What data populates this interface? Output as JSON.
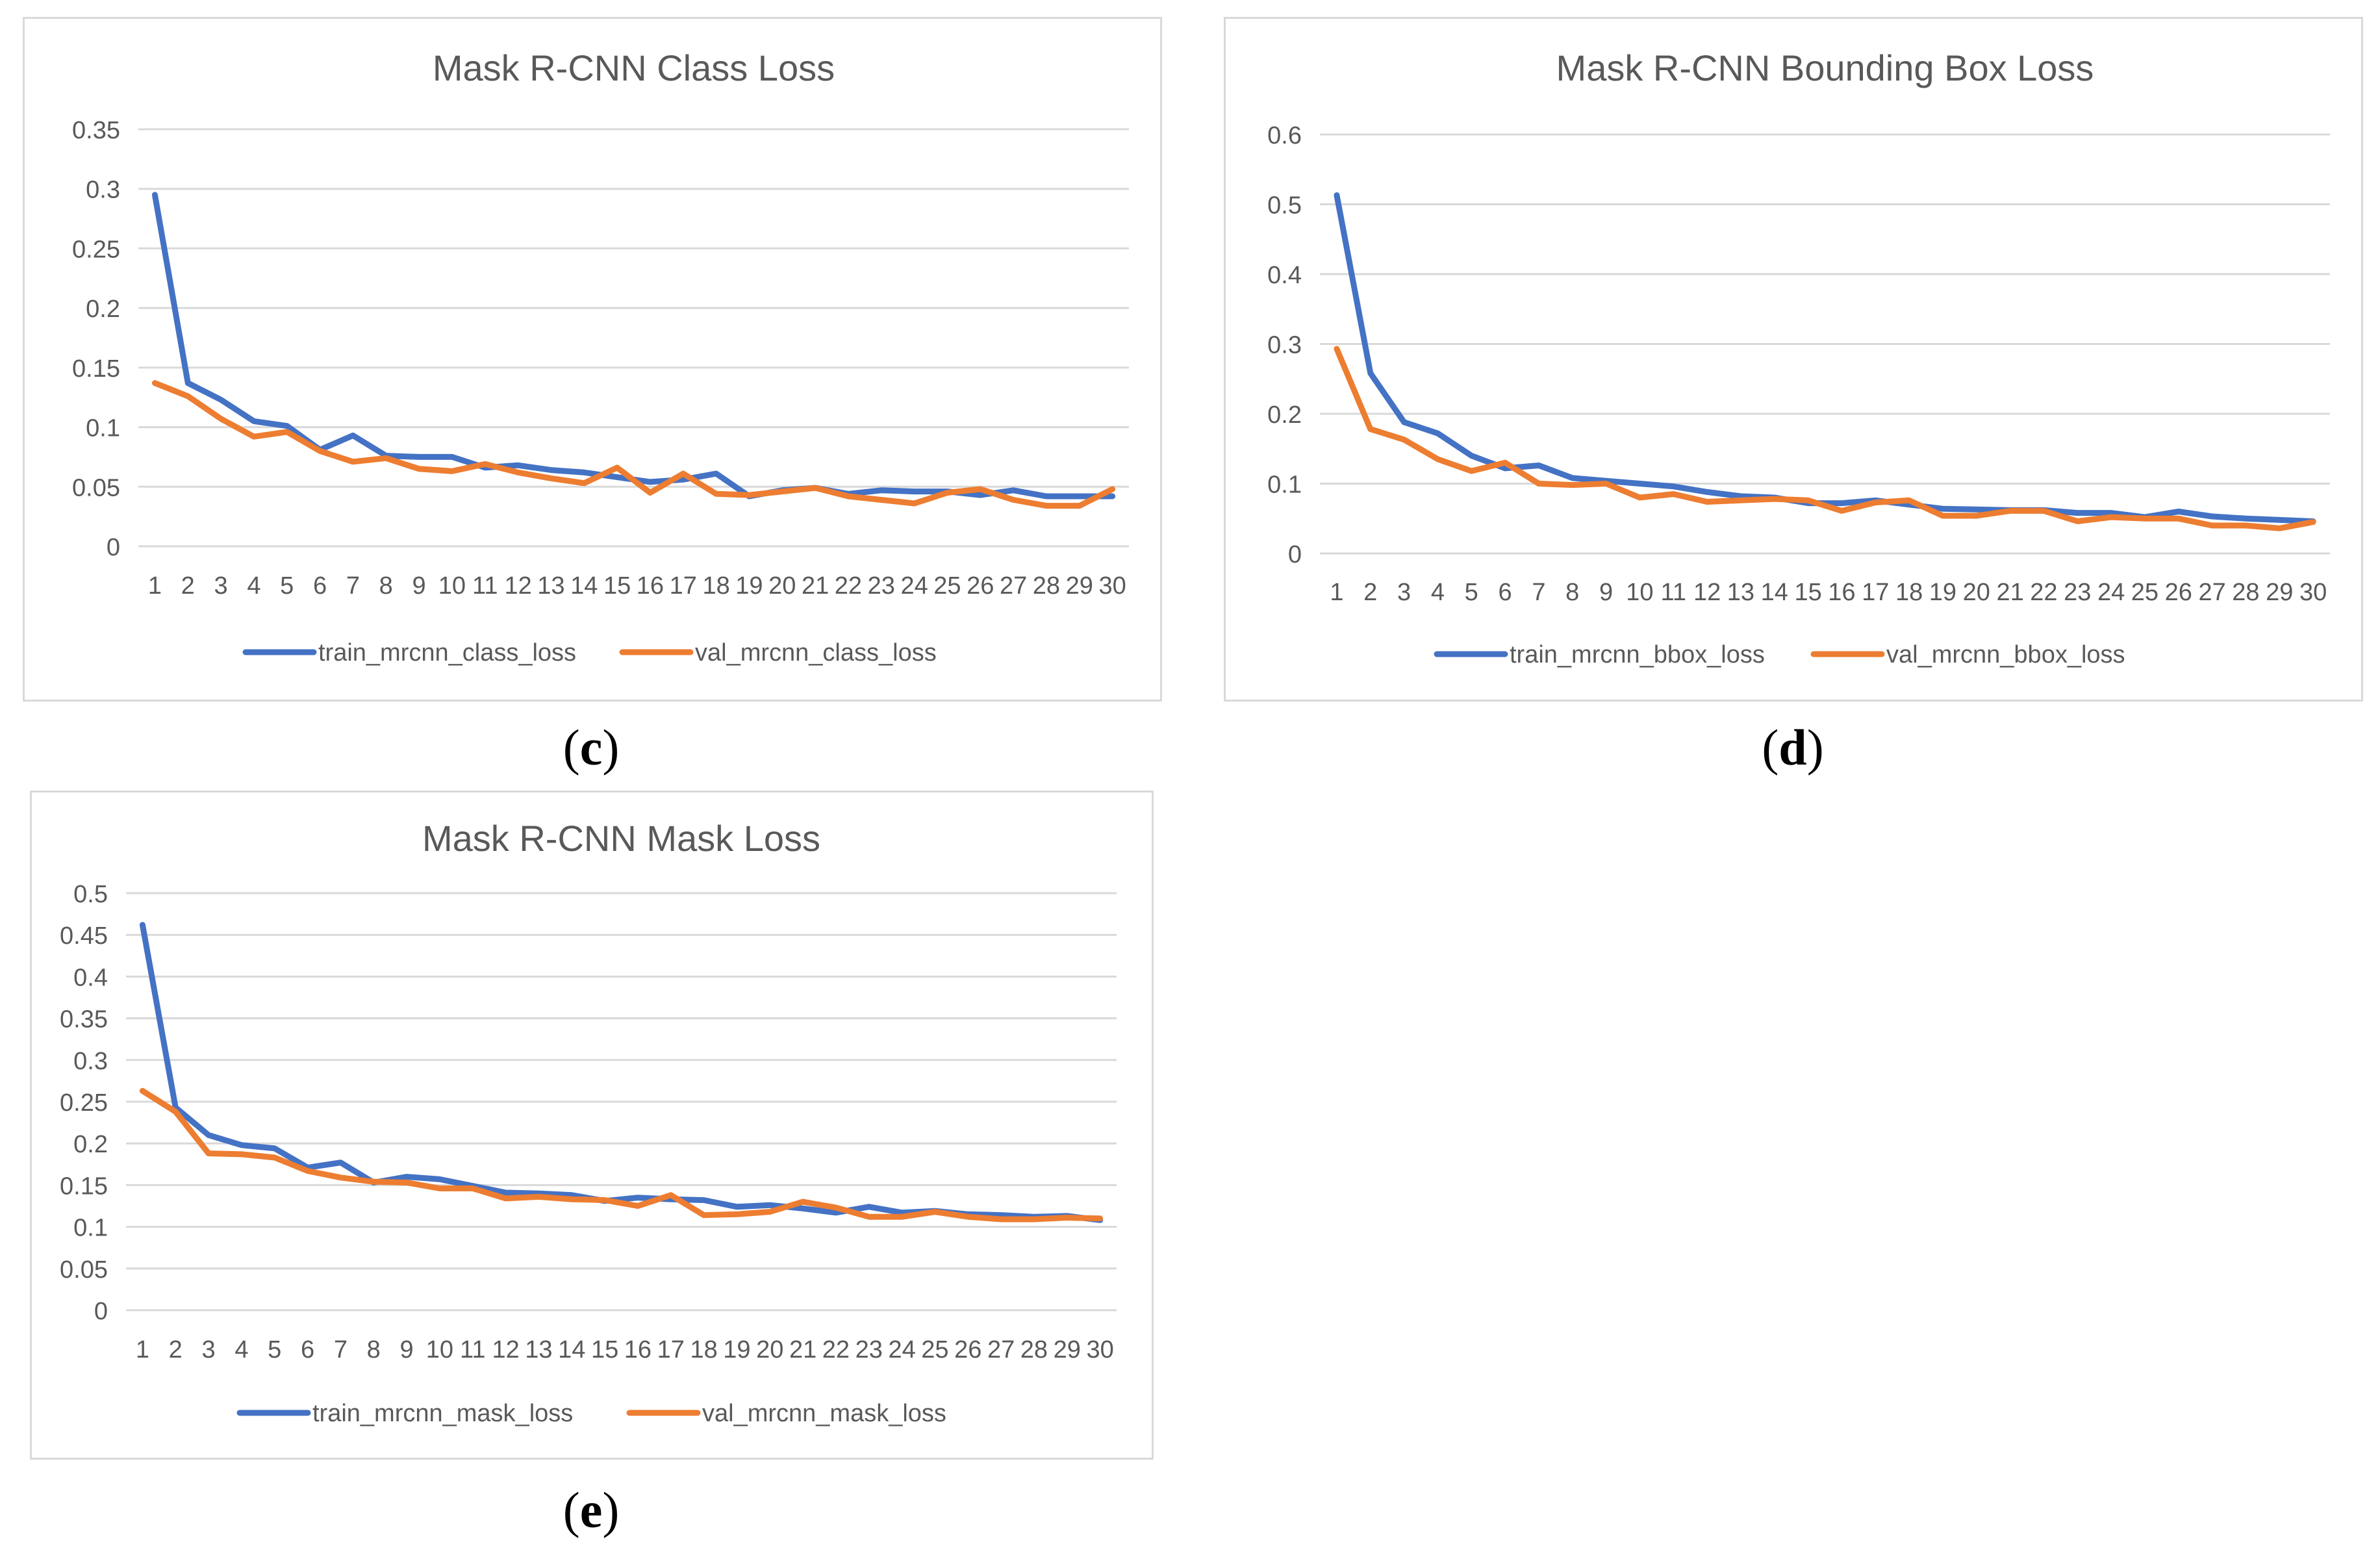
{
  "captions": {
    "c": "c",
    "d": "d",
    "e": "e"
  },
  "chart_data": [
    {
      "type": "line",
      "title": "Mask R-CNN Class Loss",
      "x": [
        1,
        2,
        3,
        4,
        5,
        6,
        7,
        8,
        9,
        10,
        11,
        12,
        13,
        14,
        15,
        16,
        17,
        18,
        19,
        20,
        21,
        22,
        23,
        24,
        25,
        26,
        27,
        28,
        29,
        30
      ],
      "ylim": [
        0,
        0.35
      ],
      "yticks": [
        0,
        0.05,
        0.1,
        0.15,
        0.2,
        0.25,
        0.3,
        0.35
      ],
      "ytick_labels": [
        "0",
        "0.05",
        "0.1",
        "0.15",
        "0.2",
        "0.25",
        "0.3",
        "0.35"
      ],
      "grid": true,
      "legend": "bottom",
      "series": [
        {
          "name": "train_mrcnn_class_loss",
          "color": "#4472C4",
          "values": [
            0.295,
            0.137,
            0.123,
            0.105,
            0.101,
            0.081,
            0.093,
            0.076,
            0.075,
            0.075,
            0.066,
            0.068,
            0.064,
            0.062,
            0.058,
            0.054,
            0.056,
            0.061,
            0.042,
            0.047,
            0.049,
            0.044,
            0.047,
            0.046,
            0.046,
            0.043,
            0.047,
            0.042,
            0.042,
            0.042
          ]
        },
        {
          "name": "val_mrcnn_class_loss",
          "color": "#ED7D31",
          "values": [
            0.137,
            0.126,
            0.107,
            0.092,
            0.096,
            0.08,
            0.071,
            0.074,
            0.065,
            0.063,
            0.069,
            0.062,
            0.057,
            0.053,
            0.066,
            0.045,
            0.061,
            0.044,
            0.043,
            0.046,
            0.049,
            0.042,
            0.039,
            0.036,
            0.045,
            0.048,
            0.039,
            0.034,
            0.034,
            0.048
          ]
        }
      ]
    },
    {
      "type": "line",
      "title": "Mask R-CNN Bounding Box Loss",
      "x": [
        1,
        2,
        3,
        4,
        5,
        6,
        7,
        8,
        9,
        10,
        11,
        12,
        13,
        14,
        15,
        16,
        17,
        18,
        19,
        20,
        21,
        22,
        23,
        24,
        25,
        26,
        27,
        28,
        29,
        30
      ],
      "ylim": [
        0,
        0.6
      ],
      "yticks": [
        0,
        0.1,
        0.2,
        0.3,
        0.4,
        0.5,
        0.6
      ],
      "ytick_labels": [
        "0",
        "0.1",
        "0.2",
        "0.3",
        "0.4",
        "0.5",
        "0.6"
      ],
      "grid": true,
      "legend": "bottom",
      "series": [
        {
          "name": "train_mrcnn_bbox_loss",
          "color": "#4472C4",
          "values": [
            0.513,
            0.258,
            0.188,
            0.172,
            0.14,
            0.122,
            0.126,
            0.108,
            0.104,
            0.1,
            0.096,
            0.088,
            0.082,
            0.08,
            0.072,
            0.072,
            0.076,
            0.07,
            0.064,
            0.063,
            0.062,
            0.062,
            0.058,
            0.058,
            0.052,
            0.06,
            0.053,
            0.05,
            0.048,
            0.046
          ]
        },
        {
          "name": "val_mrcnn_bbox_loss",
          "color": "#ED7D31",
          "values": [
            0.293,
            0.178,
            0.163,
            0.135,
            0.118,
            0.13,
            0.1,
            0.098,
            0.1,
            0.08,
            0.085,
            0.074,
            0.076,
            0.078,
            0.076,
            0.061,
            0.073,
            0.076,
            0.054,
            0.054,
            0.061,
            0.061,
            0.046,
            0.052,
            0.05,
            0.05,
            0.04,
            0.04,
            0.036,
            0.045
          ]
        }
      ]
    },
    {
      "type": "line",
      "title": "Mask R-CNN Mask Loss",
      "x": [
        1,
        2,
        3,
        4,
        5,
        6,
        7,
        8,
        9,
        10,
        11,
        12,
        13,
        14,
        15,
        16,
        17,
        18,
        19,
        20,
        21,
        22,
        23,
        24,
        25,
        26,
        27,
        28,
        29,
        30
      ],
      "ylim": [
        0,
        0.5
      ],
      "yticks": [
        0,
        0.05,
        0.1,
        0.15,
        0.2,
        0.25,
        0.3,
        0.35,
        0.4,
        0.45,
        0.5
      ],
      "ytick_labels": [
        "0",
        "0.05",
        "0.1",
        "0.15",
        "0.2",
        "0.25",
        "0.3",
        "0.35",
        "0.4",
        "0.45",
        "0.5"
      ],
      "grid": true,
      "legend": "bottom",
      "series": [
        {
          "name": "train_mrcnn_mask_loss",
          "color": "#4472C4",
          "values": [
            0.462,
            0.243,
            0.21,
            0.198,
            0.194,
            0.171,
            0.177,
            0.153,
            0.16,
            0.157,
            0.149,
            0.141,
            0.14,
            0.138,
            0.131,
            0.135,
            0.133,
            0.132,
            0.124,
            0.126,
            0.122,
            0.117,
            0.124,
            0.117,
            0.119,
            0.115,
            0.114,
            0.112,
            0.113,
            0.108
          ]
        },
        {
          "name": "val_mrcnn_mask_loss",
          "color": "#ED7D31",
          "values": [
            0.263,
            0.238,
            0.188,
            0.187,
            0.183,
            0.167,
            0.159,
            0.154,
            0.153,
            0.146,
            0.146,
            0.134,
            0.136,
            0.133,
            0.132,
            0.125,
            0.138,
            0.114,
            0.115,
            0.118,
            0.13,
            0.123,
            0.112,
            0.112,
            0.118,
            0.112,
            0.109,
            0.109,
            0.111,
            0.11
          ]
        }
      ]
    }
  ]
}
